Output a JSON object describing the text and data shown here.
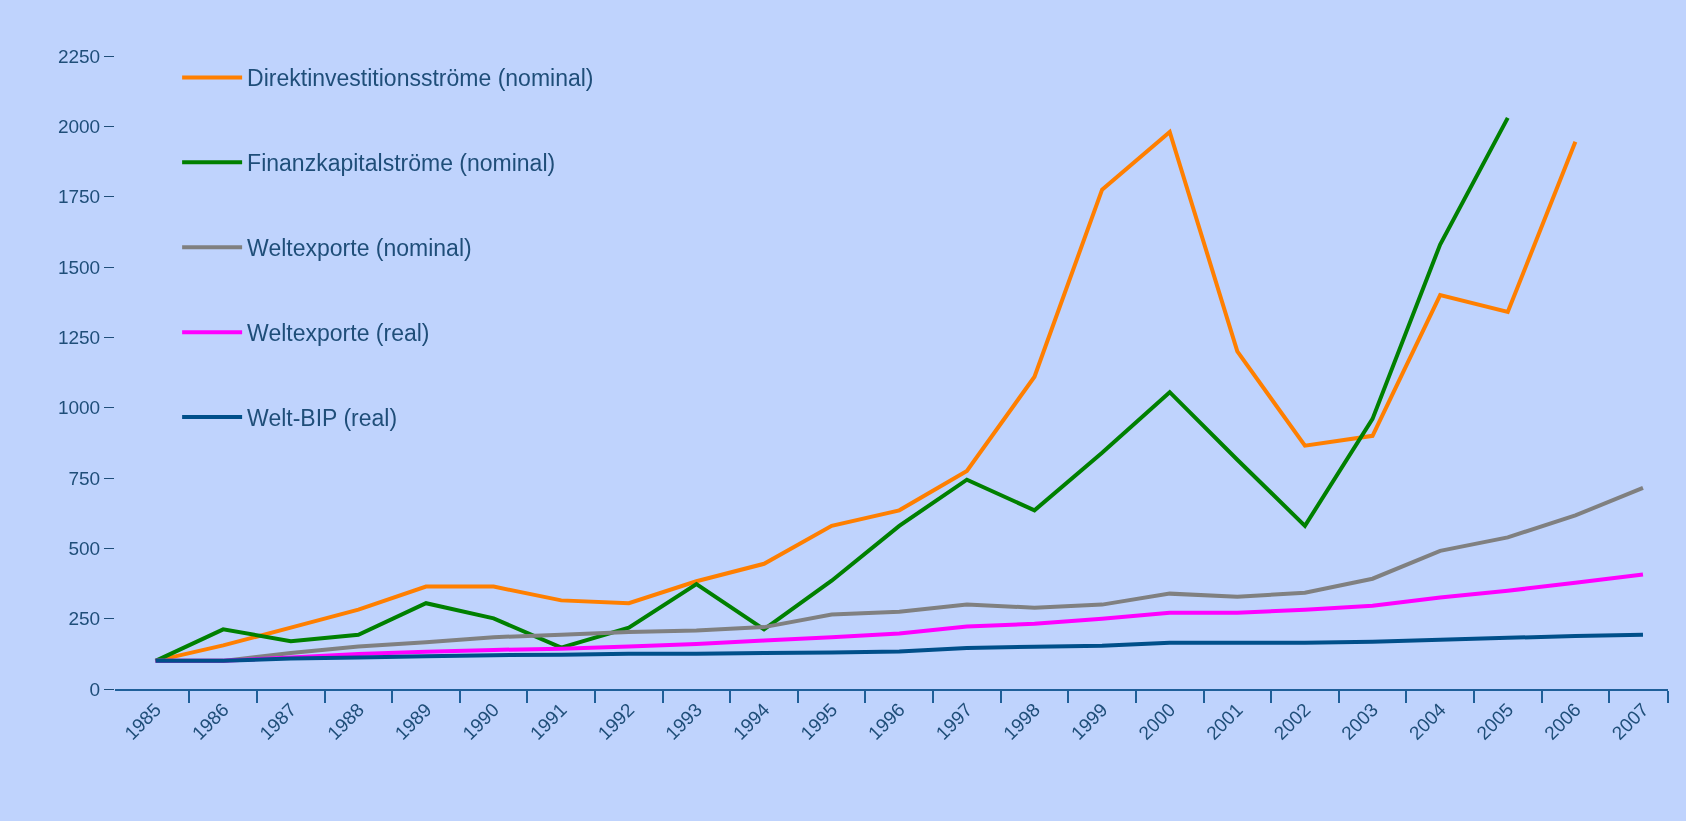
{
  "chart_data": {
    "type": "line",
    "categories": [
      "1985",
      "1986",
      "1987",
      "1988",
      "1989",
      "1990",
      "1991",
      "1992",
      "1993",
      "1994",
      "1995",
      "1996",
      "1997",
      "1998",
      "1999",
      "2000",
      "2001",
      "2002",
      "2003",
      "2004",
      "2005",
      "2006",
      "2007"
    ],
    "series": [
      {
        "name": "Direktinvestitionsströme (nominal)",
        "color": "#ff7f00",
        "values": [
          100,
          155,
          218,
          282,
          364,
          364,
          315,
          305,
          383,
          445,
          580,
          635,
          775,
          1110,
          1775,
          1980,
          1200,
          865,
          900,
          1400,
          1340,
          1945,
          null
        ]
      },
      {
        "name": "Finanzkapitalströme (nominal)",
        "color": "#008000",
        "values": [
          100,
          212,
          170,
          193,
          305,
          251,
          147,
          218,
          373,
          212,
          385,
          580,
          744,
          635,
          840,
          1055,
          815,
          580,
          960,
          1580,
          2030,
          null,
          null
        ]
      },
      {
        "name": "Weltexporte (nominal)",
        "color": "#808080",
        "values": [
          100,
          100,
          128,
          151,
          166,
          184,
          193,
          203,
          208,
          220,
          265,
          275,
          300,
          289,
          300,
          339,
          328,
          342,
          392,
          491,
          539,
          617,
          715
        ]
      },
      {
        "name": "Weltexporte (real)",
        "color": "#ff00ff",
        "values": [
          100,
          100,
          112,
          124,
          132,
          139,
          143,
          151,
          160,
          172,
          184,
          197,
          222,
          232,
          250,
          271,
          271,
          282,
          296,
          325,
          349,
          378,
          407
        ]
      },
      {
        "name": "Welt-BIP (real)",
        "color": "#004f8a",
        "values": [
          100,
          100,
          108,
          112,
          116,
          120,
          122,
          125,
          125,
          128,
          130,
          133,
          146,
          150,
          154,
          164,
          164,
          164,
          168,
          175,
          182,
          188,
          193
        ]
      }
    ],
    "ylim": [
      0,
      2250
    ],
    "yticks": [
      0,
      250,
      500,
      750,
      1000,
      1250,
      1500,
      1750,
      2000,
      2250
    ],
    "grid": false,
    "legend": "top left",
    "line_style": "solid"
  }
}
